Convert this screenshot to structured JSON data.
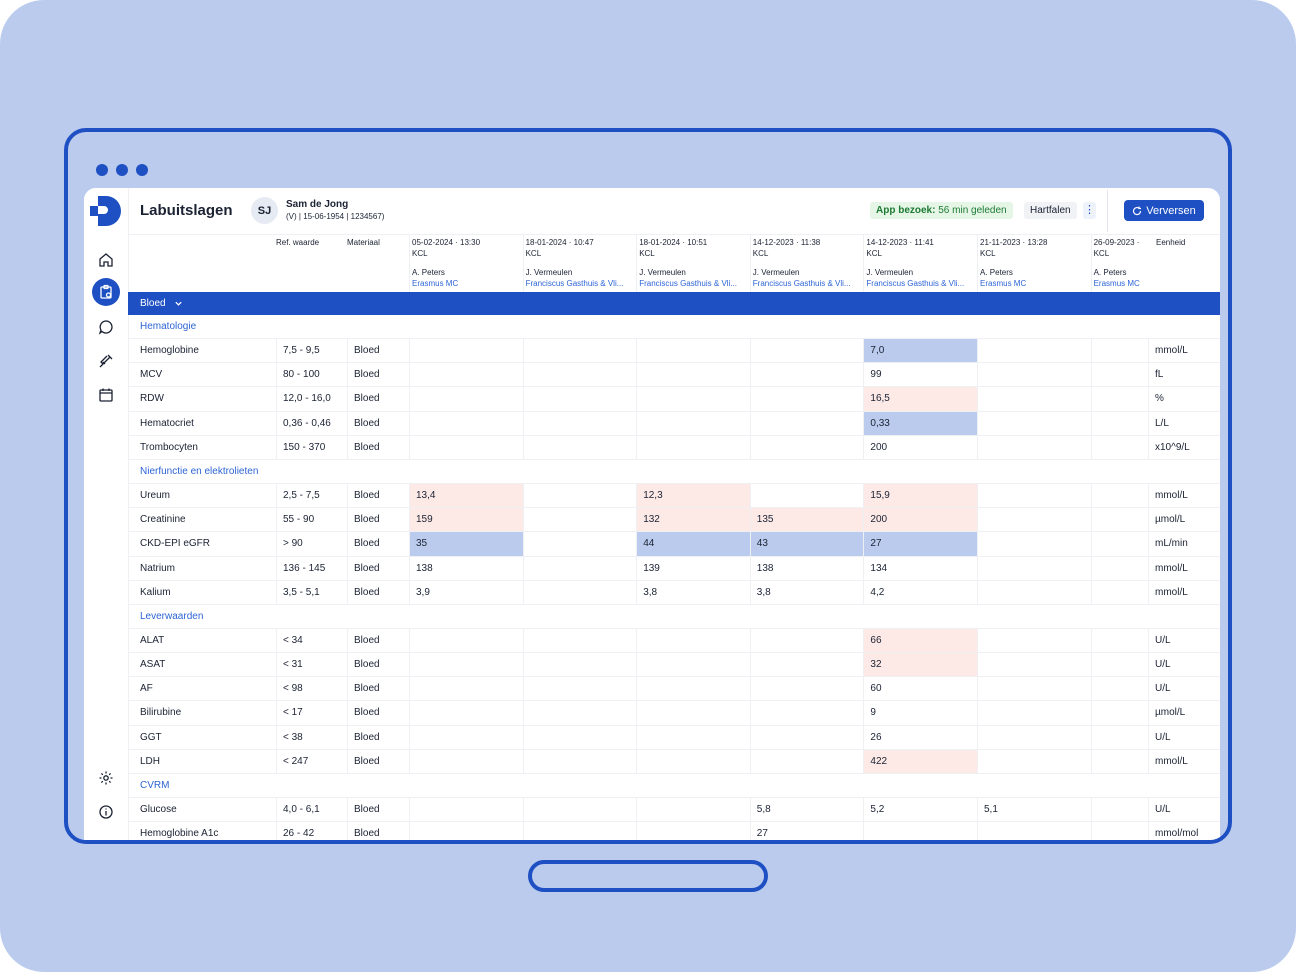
{
  "app": {
    "title": "Labuitslagen",
    "patient": {
      "initials": "SJ",
      "name": "Sam de Jong",
      "meta": "(V) | 15-06-1954 | 1234567)"
    },
    "visit": {
      "label": "App bezoek:",
      "value": "56 min geleden"
    },
    "tag": "Hartfalen",
    "kebab": "⋮",
    "refresh_label": "Verversen"
  },
  "sidebar_icons": [
    "home-icon",
    "lab-clipboard-icon",
    "chat-icon",
    "syringe-icon",
    "calendar-icon",
    "settings-icon",
    "info-icon"
  ],
  "colors": {
    "accent": "#1e50c4",
    "high": "#fdeae7",
    "low": "#bacbed",
    "link": "#2d64d6"
  },
  "columns": {
    "ref": "Ref. waarde",
    "material": "Materiaal",
    "unit": "Eenheid",
    "dates": [
      {
        "date": "05-02-2024 · 13:30",
        "lab": "KCL",
        "doctor": "A. Peters",
        "hospital": "Erasmus MC"
      },
      {
        "date": "18-01-2024 · 10:47",
        "lab": "KCL",
        "doctor": "J. Vermeulen",
        "hospital": "Franciscus Gasthuis & Vli..."
      },
      {
        "date": "18-01-2024 · 10:51",
        "lab": "KCL",
        "doctor": "J. Vermeulen",
        "hospital": "Franciscus Gasthuis & Vli..."
      },
      {
        "date": "14-12-2023 · 11:38",
        "lab": "KCL",
        "doctor": "J. Vermeulen",
        "hospital": "Franciscus Gasthuis & Vli..."
      },
      {
        "date": "14-12-2023 · 11:41",
        "lab": "KCL",
        "doctor": "J. Vermeulen",
        "hospital": "Franciscus Gasthuis & Vli..."
      },
      {
        "date": "21-11-2023 · 13:28",
        "lab": "KCL",
        "doctor": "A. Peters",
        "hospital": "Erasmus MC"
      },
      {
        "date": "26-09-2023 ·",
        "lab": "KCL",
        "doctor": "A. Peters",
        "hospital": "Erasmus MC"
      }
    ]
  },
  "group": "Bloed",
  "sections": [
    {
      "title": "Hematologie",
      "rows": [
        {
          "name": "Hemoglobine",
          "ref": "7,5 - 9,5",
          "material": "Bloed",
          "unit": "mmol/L",
          "values": [
            "",
            "",
            "",
            "",
            "7,0",
            "",
            ""
          ],
          "flags": [
            "",
            "",
            "",
            "",
            "low",
            "",
            ""
          ]
        },
        {
          "name": "MCV",
          "ref": "80 - 100",
          "material": "Bloed",
          "unit": "fL",
          "values": [
            "",
            "",
            "",
            "",
            "99",
            "",
            ""
          ],
          "flags": [
            "",
            "",
            "",
            "",
            "",
            "",
            ""
          ]
        },
        {
          "name": "RDW",
          "ref": "12,0 - 16,0",
          "material": "Bloed",
          "unit": "%",
          "values": [
            "",
            "",
            "",
            "",
            "16,5",
            "",
            ""
          ],
          "flags": [
            "",
            "",
            "",
            "",
            "high",
            "",
            ""
          ]
        },
        {
          "name": "Hematocriet",
          "ref": "0,36 - 0,46",
          "material": "Bloed",
          "unit": "L/L",
          "values": [
            "",
            "",
            "",
            "",
            "0,33",
            "",
            ""
          ],
          "flags": [
            "",
            "",
            "",
            "",
            "low",
            "",
            ""
          ]
        },
        {
          "name": "Trombocyten",
          "ref": "150 - 370",
          "material": "Bloed",
          "unit": "x10^9/L",
          "values": [
            "",
            "",
            "",
            "",
            "200",
            "",
            ""
          ],
          "flags": [
            "",
            "",
            "",
            "",
            "",
            "",
            ""
          ]
        }
      ]
    },
    {
      "title": "Nierfunctie en elektrolieten",
      "rows": [
        {
          "name": "Ureum",
          "ref": "2,5 - 7,5",
          "material": "Bloed",
          "unit": "mmol/L",
          "values": [
            "13,4",
            "",
            "12,3",
            "",
            "15,9",
            "",
            ""
          ],
          "flags": [
            "high",
            "",
            "high",
            "",
            "high",
            "",
            ""
          ]
        },
        {
          "name": "Creatinine",
          "ref": "55 - 90",
          "material": "Bloed",
          "unit": "µmol/L",
          "values": [
            "159",
            "",
            "132",
            "135",
            "200",
            "",
            ""
          ],
          "flags": [
            "high",
            "",
            "high",
            "high",
            "high",
            "",
            ""
          ]
        },
        {
          "name": "CKD-EPI eGFR",
          "ref": "> 90",
          "material": "Bloed",
          "unit": "mL/min",
          "values": [
            "35",
            "",
            "44",
            "43",
            "27",
            "",
            ""
          ],
          "flags": [
            "low",
            "",
            "low",
            "low",
            "low",
            "",
            ""
          ]
        },
        {
          "name": "Natrium",
          "ref": "136 - 145",
          "material": "Bloed",
          "unit": "mmol/L",
          "values": [
            "138",
            "",
            "139",
            "138",
            "134",
            "",
            ""
          ],
          "flags": [
            "",
            "",
            "",
            "",
            "",
            "",
            ""
          ]
        },
        {
          "name": "Kalium",
          "ref": "3,5 - 5,1",
          "material": "Bloed",
          "unit": "mmol/L",
          "values": [
            "3,9",
            "",
            "3,8",
            "3,8",
            "4,2",
            "",
            ""
          ],
          "flags": [
            "",
            "",
            "",
            "",
            "",
            "",
            ""
          ]
        }
      ]
    },
    {
      "title": "Leverwaarden",
      "rows": [
        {
          "name": "ALAT",
          "ref": "< 34",
          "material": "Bloed",
          "unit": "U/L",
          "values": [
            "",
            "",
            "",
            "",
            "66",
            "",
            ""
          ],
          "flags": [
            "",
            "",
            "",
            "",
            "high",
            "",
            ""
          ]
        },
        {
          "name": "ASAT",
          "ref": "< 31",
          "material": "Bloed",
          "unit": "U/L",
          "values": [
            "",
            "",
            "",
            "",
            "32",
            "",
            ""
          ],
          "flags": [
            "",
            "",
            "",
            "",
            "high",
            "",
            ""
          ]
        },
        {
          "name": "AF",
          "ref": "< 98",
          "material": "Bloed",
          "unit": "U/L",
          "values": [
            "",
            "",
            "",
            "",
            "60",
            "",
            ""
          ],
          "flags": [
            "",
            "",
            "",
            "",
            "",
            "",
            ""
          ]
        },
        {
          "name": "Bilirubine",
          "ref": "< 17",
          "material": "Bloed",
          "unit": "µmol/L",
          "values": [
            "",
            "",
            "",
            "",
            "9",
            "",
            ""
          ],
          "flags": [
            "",
            "",
            "",
            "",
            "",
            "",
            ""
          ]
        },
        {
          "name": "GGT",
          "ref": "< 38",
          "material": "Bloed",
          "unit": "U/L",
          "values": [
            "",
            "",
            "",
            "",
            "26",
            "",
            ""
          ],
          "flags": [
            "",
            "",
            "",
            "",
            "",
            "",
            ""
          ]
        },
        {
          "name": "LDH",
          "ref": "< 247",
          "material": "Bloed",
          "unit": "mmol/L",
          "values": [
            "",
            "",
            "",
            "",
            "422",
            "",
            ""
          ],
          "flags": [
            "",
            "",
            "",
            "",
            "high",
            "",
            ""
          ]
        }
      ]
    },
    {
      "title": "CVRM",
      "rows": [
        {
          "name": "Glucose",
          "ref": "4,0 - 6,1",
          "material": "Bloed",
          "unit": "U/L",
          "values": [
            "",
            "",
            "",
            "5,8",
            "5,2",
            "5,1",
            ""
          ],
          "flags": [
            "",
            "",
            "",
            "",
            "",
            "",
            ""
          ]
        },
        {
          "name": "Hemoglobine A1c",
          "ref": "26 - 42",
          "material": "Bloed",
          "unit": "mmol/mol",
          "values": [
            "",
            "",
            "",
            "27",
            "",
            "",
            ""
          ],
          "flags": [
            "",
            "",
            "",
            "",
            "",
            "",
            ""
          ]
        }
      ]
    }
  ]
}
